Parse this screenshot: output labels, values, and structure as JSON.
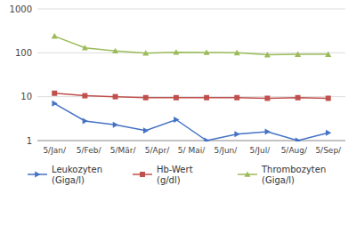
{
  "chart_data": {
    "type": "line",
    "x": [
      0,
      0.8888888888888888,
      1.7777777777777777,
      2.6666666666666665,
      3.5555555555555554,
      4.444444444444445,
      5.333333333333333,
      6.222222222222222,
      7.111111111111111,
      8
    ],
    "xlim": [
      -0.5,
      8.5
    ],
    "xticks": [
      {
        "value": 0,
        "label": "5/Jan/"
      },
      {
        "value": 1,
        "label": "5/Feb/"
      },
      {
        "value": 2,
        "label": "5/Mär/"
      },
      {
        "value": 3,
        "label": "5/Apr/"
      },
      {
        "value": 4,
        "label": "5/ Mai/"
      },
      {
        "value": 5,
        "label": "5/Jun/"
      },
      {
        "value": 6,
        "label": "5/Jul/"
      },
      {
        "value": 7,
        "label": "5/Aug/"
      },
      {
        "value": 8,
        "label": "5/Sep/"
      }
    ],
    "series": [
      {
        "name": "Leukozyten\n(Giga/l)",
        "color": "#4472C4",
        "marker": "triangle-right",
        "values": [
          7.0,
          2.8,
          2.3,
          1.7,
          3.0,
          1.0,
          1.4,
          1.6,
          1.0,
          1.5
        ]
      },
      {
        "name": "Hb-Wert\n(g/dl)",
        "color": "#C0504D",
        "marker": "square",
        "values": [
          12.0,
          10.5,
          10.0,
          9.5,
          9.5,
          9.5,
          9.5,
          9.2,
          9.5,
          9.2
        ]
      },
      {
        "name": "Thrombozyten\n(Giga/l)",
        "color": "#9BBB59",
        "marker": "triangle-up",
        "values": [
          240,
          130,
          110,
          98,
          103,
          102,
          100,
          90,
          92,
          92
        ]
      }
    ],
    "log": "y",
    "ylim": [
      1,
      1000
    ],
    "yticks": [
      1,
      10,
      100,
      1000
    ],
    "grid": true,
    "legend": "bottom"
  }
}
